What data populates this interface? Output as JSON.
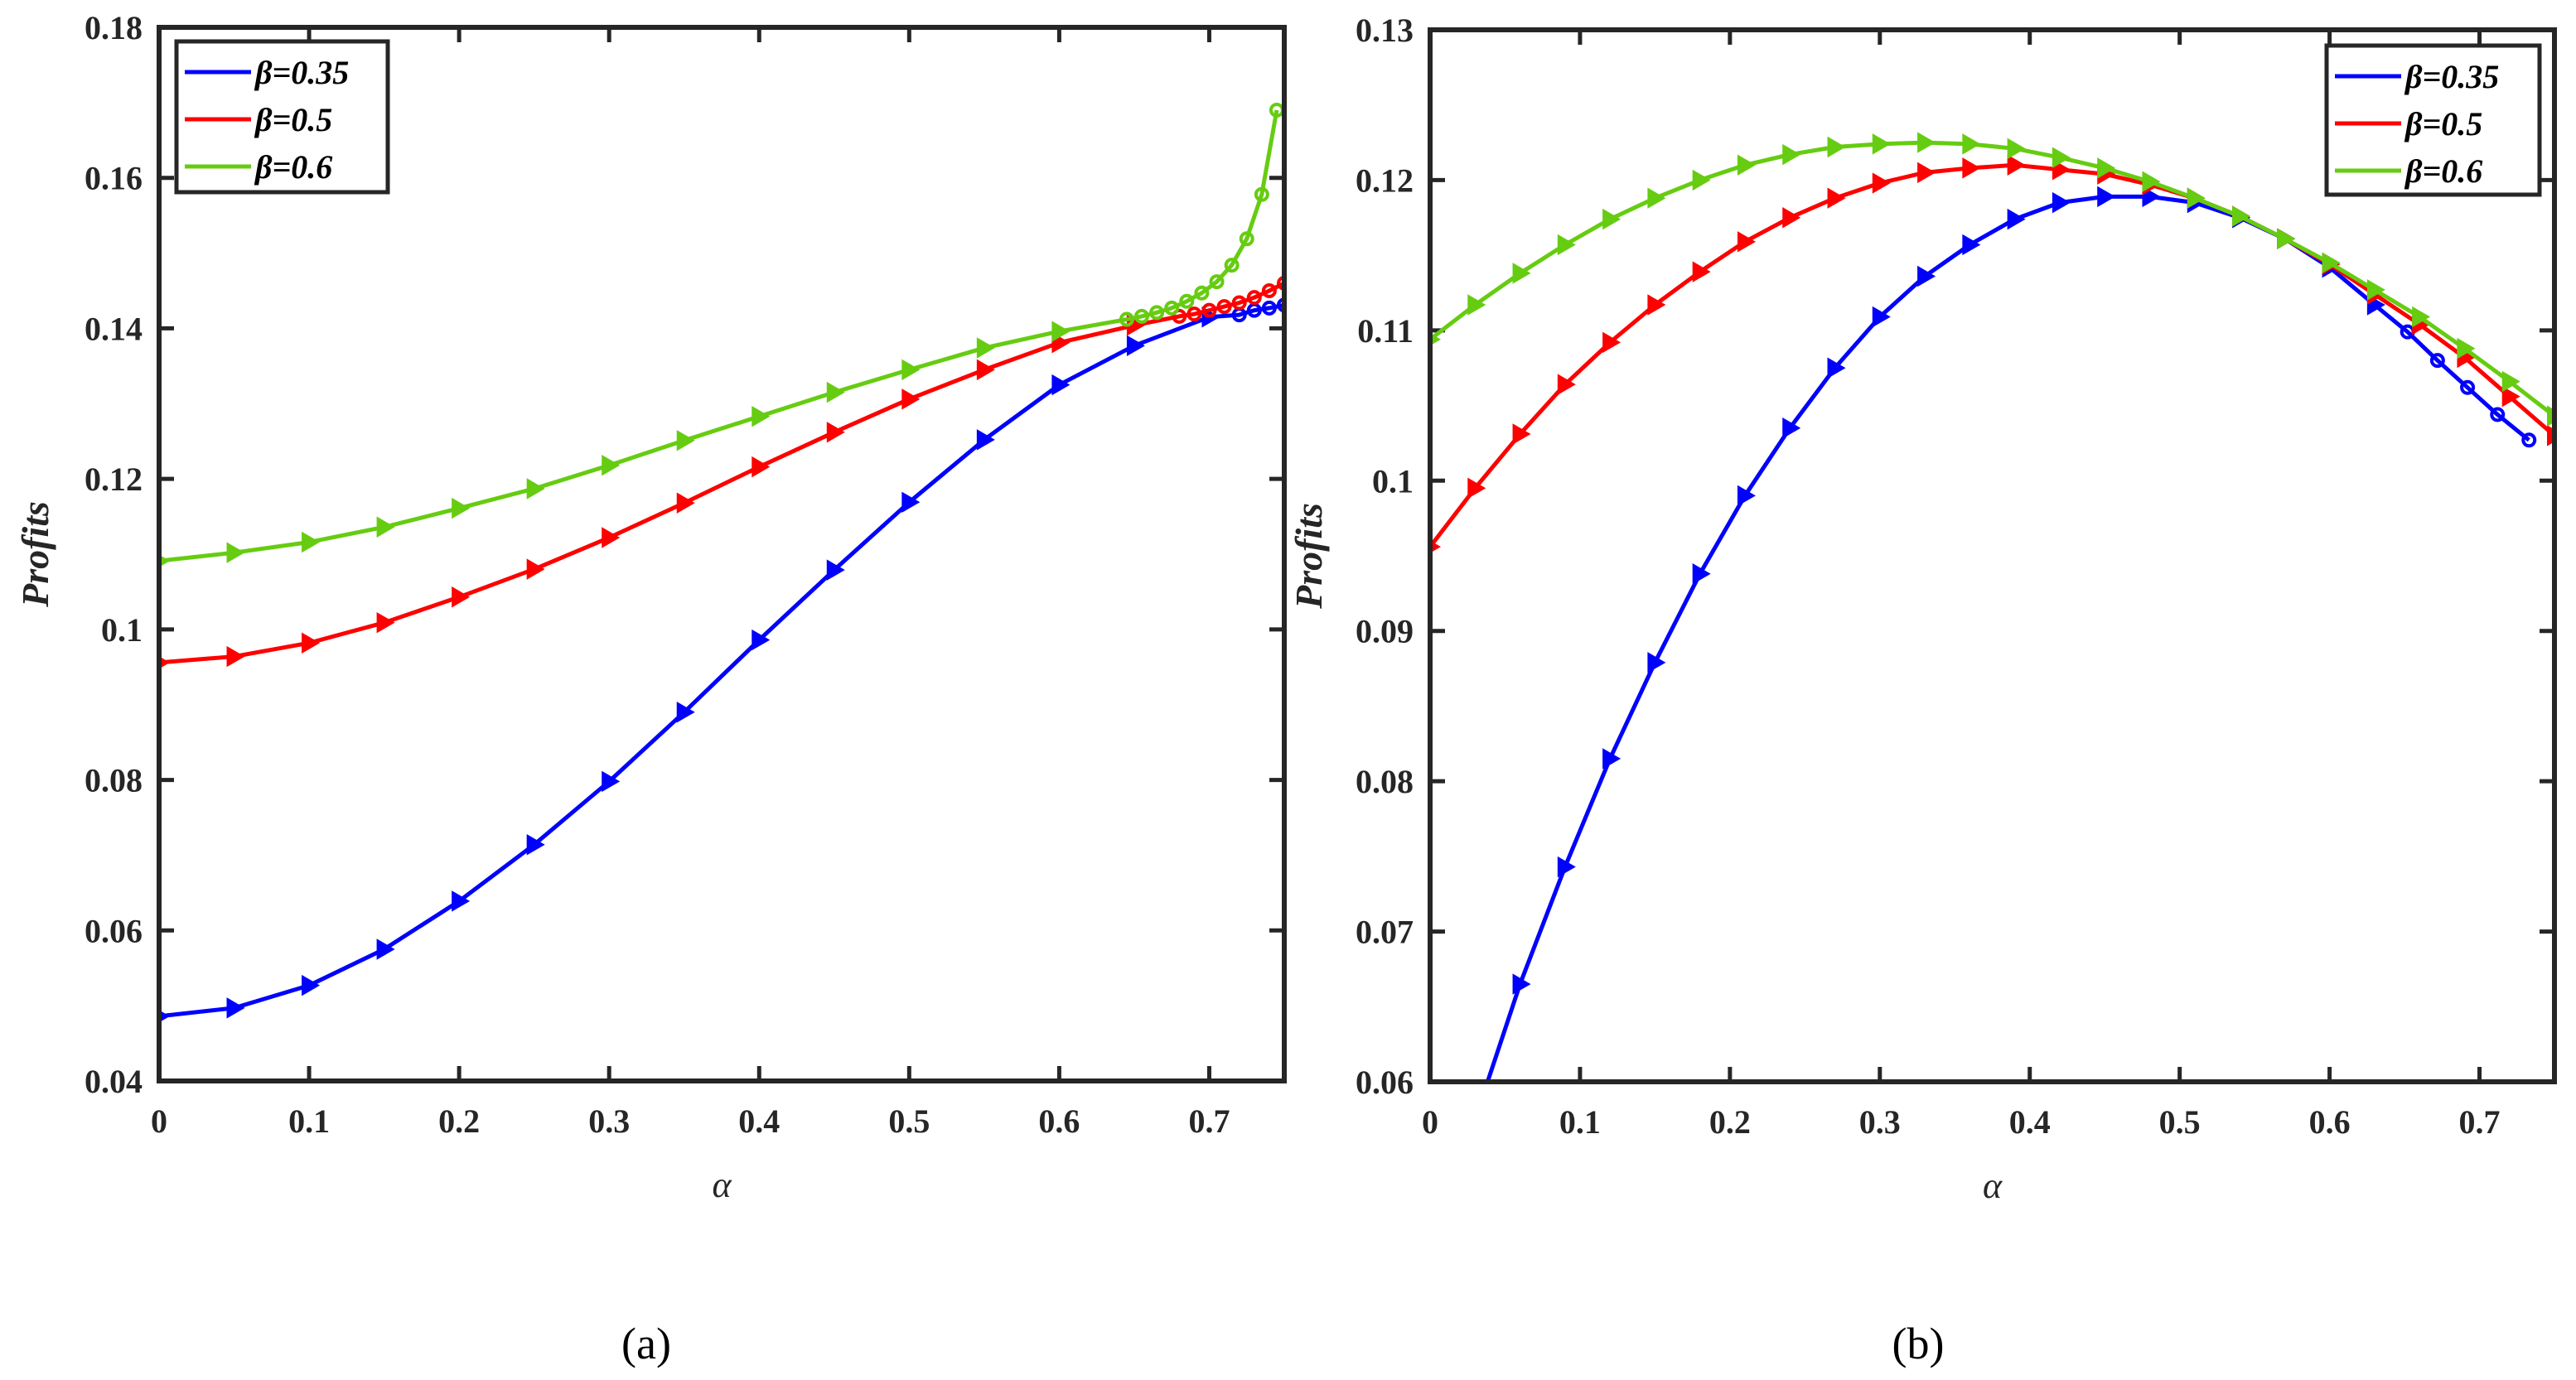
{
  "chart_data": [
    {
      "type": "line",
      "caption": "(a)",
      "caption_letter": "a",
      "xlabel": "α",
      "ylabel": "Profits",
      "xlim": [
        0,
        0.75
      ],
      "ylim": [
        0.04,
        0.18
      ],
      "xticks": [
        "0",
        "0.1",
        "0.2",
        "0.3",
        "0.4",
        "0.5",
        "0.6",
        "0.7"
      ],
      "yticks": [
        "0.04",
        "0.06",
        "0.08",
        "0.1",
        "0.12",
        "0.14",
        "0.16",
        "0.18"
      ],
      "legend_position": "top-left",
      "series": [
        {
          "name": "β=0.35",
          "color": "#0000ff",
          "x": [
            0,
            0.05,
            0.1,
            0.15,
            0.2,
            0.25,
            0.3,
            0.35,
            0.4,
            0.45,
            0.5,
            0.55,
            0.6,
            0.65,
            0.7,
            0.72,
            0.73,
            0.74,
            0.75
          ],
          "y": [
            0.0486,
            0.0497,
            0.0527,
            0.0575,
            0.0639,
            0.0714,
            0.0798,
            0.089,
            0.0986,
            0.1079,
            0.1169,
            0.1252,
            0.1325,
            0.1377,
            0.1415,
            0.1418,
            0.1424,
            0.1427,
            0.1431
          ],
          "circle_from_index": 15
        },
        {
          "name": "β=0.5",
          "color": "#ff0000",
          "x": [
            0,
            0.05,
            0.1,
            0.15,
            0.2,
            0.25,
            0.3,
            0.35,
            0.4,
            0.45,
            0.5,
            0.55,
            0.6,
            0.65,
            0.68,
            0.69,
            0.7,
            0.71,
            0.72,
            0.73,
            0.74,
            0.75
          ],
          "y": [
            0.0956,
            0.0964,
            0.0982,
            0.1009,
            0.1043,
            0.108,
            0.1122,
            0.1168,
            0.1216,
            0.1262,
            0.1306,
            0.1345,
            0.1381,
            0.1404,
            0.1416,
            0.1419,
            0.1424,
            0.1429,
            0.1434,
            0.1441,
            0.145,
            0.146
          ],
          "circle_from_index": 14
        },
        {
          "name": "β=0.6",
          "color": "#66cc11",
          "x": [
            0,
            0.05,
            0.1,
            0.15,
            0.2,
            0.25,
            0.3,
            0.35,
            0.4,
            0.45,
            0.5,
            0.55,
            0.6,
            0.645,
            0.655,
            0.665,
            0.675,
            0.685,
            0.695,
            0.705,
            0.715,
            0.725,
            0.735,
            0.745
          ],
          "y": [
            0.1091,
            0.1102,
            0.1116,
            0.1136,
            0.1161,
            0.1187,
            0.1218,
            0.1251,
            0.1283,
            0.1315,
            0.1345,
            0.1374,
            0.1396,
            0.1412,
            0.1416,
            0.1421,
            0.1427,
            0.1436,
            0.1447,
            0.1462,
            0.1484,
            0.1519,
            0.1578,
            0.169
          ],
          "circle_from_index": 13
        }
      ]
    },
    {
      "type": "line",
      "caption": "(b)",
      "caption_letter": "b",
      "xlabel": "α",
      "ylabel": "Profits",
      "xlim": [
        0,
        0.75
      ],
      "ylim": [
        0.06,
        0.13
      ],
      "xticks": [
        "0",
        "0.1",
        "0.2",
        "0.3",
        "0.4",
        "0.5",
        "0.6",
        "0.7"
      ],
      "yticks": [
        "0.06",
        "0.07",
        "0.08",
        "0.09",
        "0.1",
        "0.11",
        "0.12",
        "0.13"
      ],
      "legend_position": "top-right",
      "series": [
        {
          "name": "β=0.35",
          "color": "#0000ff",
          "x": [
            0.03,
            0.06,
            0.09,
            0.12,
            0.15,
            0.18,
            0.21,
            0.24,
            0.27,
            0.3,
            0.33,
            0.36,
            0.39,
            0.42,
            0.45,
            0.48,
            0.51,
            0.54,
            0.57,
            0.6,
            0.63,
            0.652,
            0.672,
            0.692,
            0.712,
            0.733
          ],
          "y": [
            0.0575,
            0.0665,
            0.0743,
            0.0815,
            0.0879,
            0.0938,
            0.099,
            0.1035,
            0.1075,
            0.1109,
            0.1136,
            0.1157,
            0.1174,
            0.1185,
            0.1189,
            0.1189,
            0.1185,
            0.1175,
            0.1161,
            0.1142,
            0.1117,
            0.1099,
            0.108,
            0.1062,
            0.1044,
            0.1027
          ],
          "circle_from_index": 21
        },
        {
          "name": "β=0.5",
          "color": "#ff0000",
          "x": [
            0,
            0.03,
            0.06,
            0.09,
            0.12,
            0.15,
            0.18,
            0.21,
            0.24,
            0.27,
            0.3,
            0.33,
            0.36,
            0.39,
            0.42,
            0.45,
            0.48,
            0.51,
            0.54,
            0.57,
            0.6,
            0.63,
            0.66,
            0.69,
            0.72,
            0.75
          ],
          "y": [
            0.0956,
            0.0995,
            0.1031,
            0.1064,
            0.1092,
            0.1117,
            0.1139,
            0.1159,
            0.1175,
            0.1188,
            0.1198,
            0.1205,
            0.1208,
            0.121,
            0.1207,
            0.1204,
            0.1197,
            0.1188,
            0.1176,
            0.1161,
            0.1144,
            0.1124,
            0.1104,
            0.1082,
            0.1056,
            0.103
          ],
          "circle_from_index": 99
        },
        {
          "name": "β=0.6",
          "color": "#66cc11",
          "x": [
            0,
            0.03,
            0.06,
            0.09,
            0.12,
            0.15,
            0.18,
            0.21,
            0.24,
            0.27,
            0.3,
            0.33,
            0.36,
            0.39,
            0.42,
            0.45,
            0.48,
            0.51,
            0.54,
            0.57,
            0.6,
            0.63,
            0.66,
            0.69,
            0.72,
            0.75
          ],
          "y": [
            0.1094,
            0.1117,
            0.1138,
            0.1157,
            0.1174,
            0.1188,
            0.12,
            0.121,
            0.1217,
            0.1222,
            0.1224,
            0.1225,
            0.1224,
            0.1221,
            0.1215,
            0.1208,
            0.1199,
            0.1188,
            0.1176,
            0.1161,
            0.1145,
            0.1127,
            0.1109,
            0.1088,
            0.1066,
            0.1043
          ],
          "circle_from_index": 99
        }
      ]
    }
  ]
}
